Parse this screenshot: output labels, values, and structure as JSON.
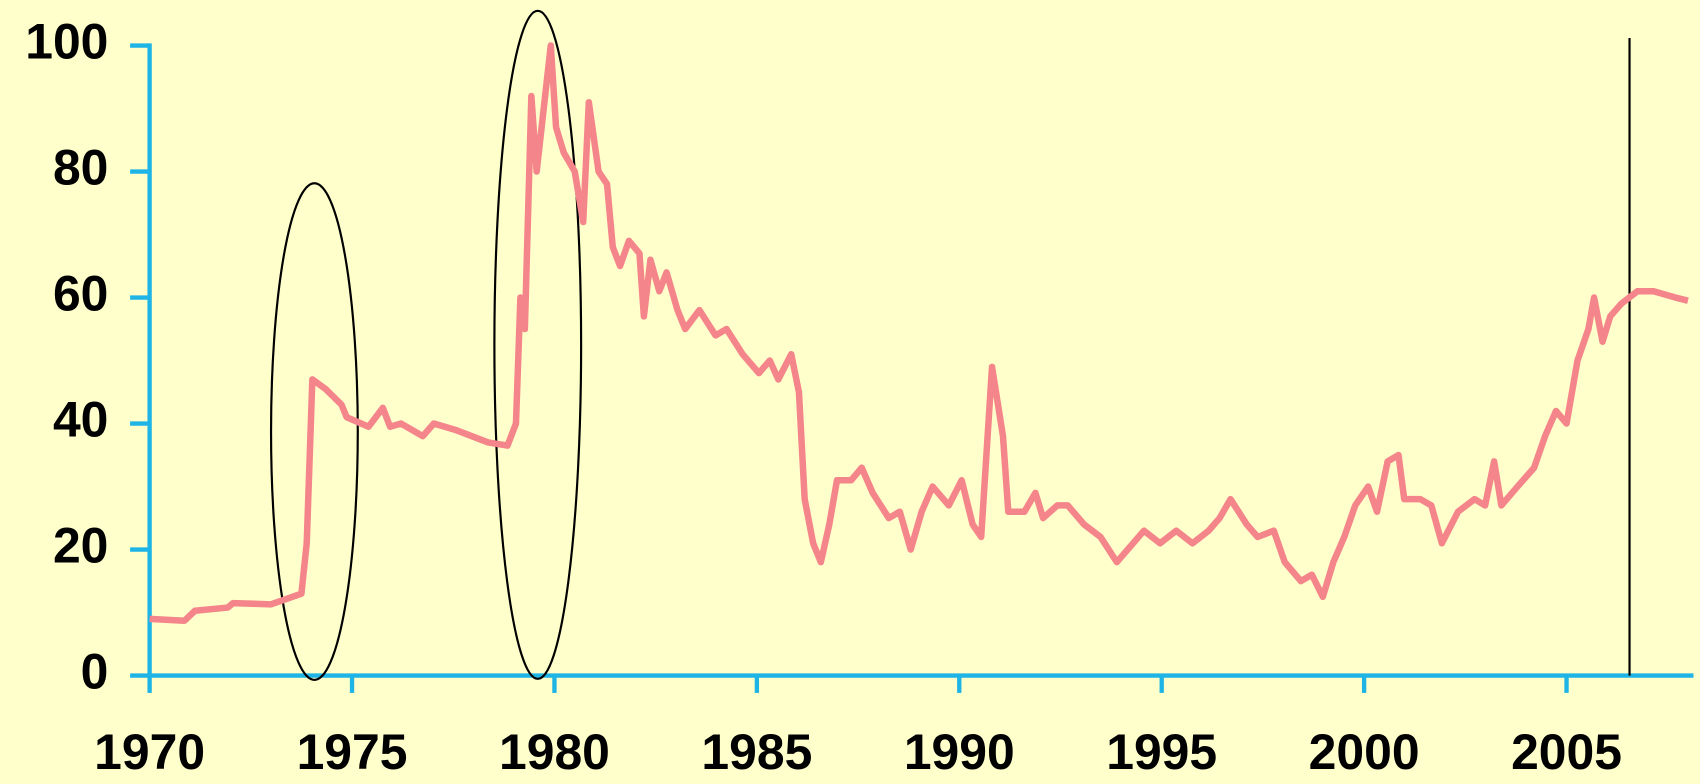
{
  "chart_data": {
    "type": "line",
    "x": [
      1970.0,
      1970.86,
      1971.12,
      1971.93,
      1972.06,
      1973.0,
      1973.53,
      1973.75,
      1973.88,
      1974.02,
      1974.34,
      1974.74,
      1974.87,
      1975.41,
      1975.76,
      1975.94,
      1976.21,
      1976.75,
      1977.02,
      1977.55,
      1978.36,
      1978.84,
      1979.05,
      1979.16,
      1979.27,
      1979.43,
      1979.56,
      1979.91,
      1980.04,
      1980.23,
      1980.5,
      1980.71,
      1980.85,
      1981.09,
      1981.3,
      1981.44,
      1981.62,
      1981.84,
      1982.1,
      1982.21,
      1982.37,
      1982.59,
      1982.77,
      1983.04,
      1983.23,
      1983.58,
      1983.98,
      1984.25,
      1984.65,
      1985.05,
      1985.32,
      1985.53,
      1985.85,
      1986.04,
      1986.18,
      1986.39,
      1986.58,
      1986.79,
      1986.98,
      1987.33,
      1987.59,
      1987.86,
      1988.26,
      1988.53,
      1988.8,
      1989.07,
      1989.34,
      1989.74,
      1990.06,
      1990.33,
      1990.54,
      1990.81,
      1991.08,
      1991.21,
      1991.61,
      1991.88,
      1992.07,
      1992.42,
      1992.68,
      1993.08,
      1993.49,
      1993.89,
      1994.56,
      1994.96,
      1995.36,
      1995.76,
      1996.16,
      1996.43,
      1996.7,
      1997.1,
      1997.37,
      1997.77,
      1998.04,
      1998.44,
      1998.71,
      1998.98,
      1999.24,
      1999.51,
      1999.78,
      2000.1,
      2000.32,
      2000.58,
      2000.85,
      2000.99,
      2001.39,
      2001.66,
      2001.92,
      2002.32,
      2002.73,
      2002.99,
      2003.21,
      2003.39,
      2003.79,
      2004.2,
      2004.47,
      2004.74,
      2005.0,
      2005.27,
      2005.54,
      2005.68,
      2005.89,
      2006.08,
      2006.35,
      2006.75,
      2007.15,
      2007.69,
      2008.0
    ],
    "values": [
      9,
      8.7,
      10.3,
      10.8,
      11.5,
      11.3,
      12.5,
      13,
      21,
      47,
      45.5,
      43,
      41,
      39.5,
      42.5,
      39.5,
      40,
      38,
      40,
      39,
      37,
      36.5,
      40,
      60,
      55,
      92,
      80,
      100,
      87,
      83,
      80,
      72,
      91,
      80,
      78,
      68,
      65,
      69,
      67,
      57,
      66,
      61,
      64,
      58,
      55,
      58,
      54,
      55,
      51,
      48,
      50,
      47,
      51,
      45,
      28,
      21,
      18,
      24,
      31,
      31,
      33,
      29,
      25,
      26,
      20,
      26,
      30,
      27,
      31,
      24,
      22,
      49,
      38,
      26,
      26,
      29,
      25,
      27,
      27,
      24,
      22,
      18,
      23,
      21,
      23,
      21,
      23,
      25,
      28,
      24,
      22,
      23,
      18,
      15,
      16,
      12.5,
      18,
      22,
      27,
      30,
      26,
      34,
      35,
      28,
      28,
      27,
      21,
      26,
      28,
      27,
      34,
      27,
      30,
      33,
      38,
      42,
      40,
      50,
      55,
      60,
      53,
      57,
      59,
      61,
      61,
      60,
      59.5
    ],
    "color": "#f4858a",
    "xlim": [
      1970,
      2008.2
    ],
    "ylim": [
      0,
      100
    ],
    "xticks": [
      1970,
      1975,
      1980,
      1985,
      1990,
      1995,
      2000,
      2005
    ],
    "yticks": [
      0,
      20,
      40,
      60,
      80,
      100
    ]
  }
}
